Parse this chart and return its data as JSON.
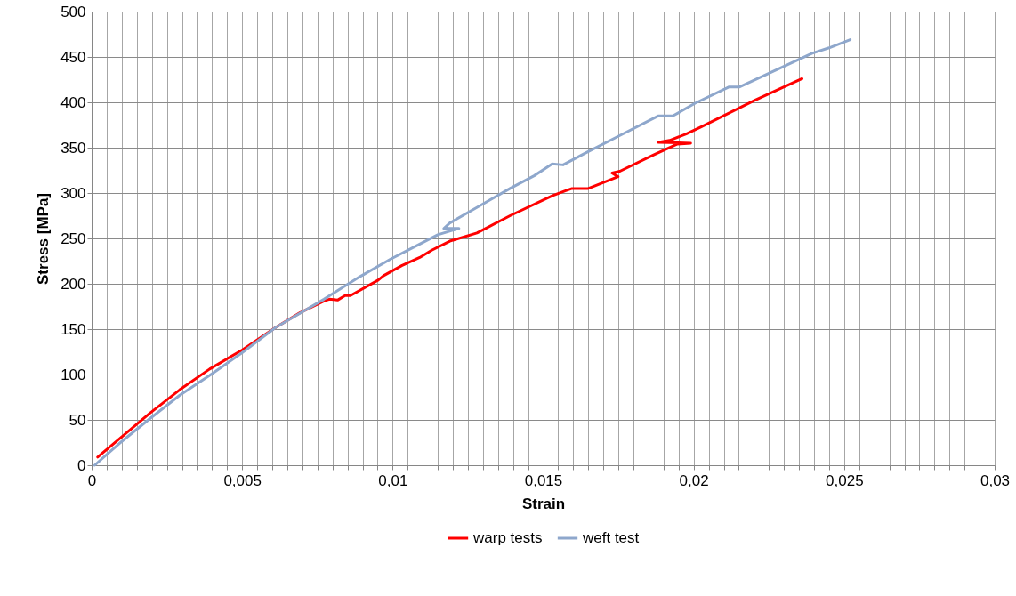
{
  "chart_data": {
    "type": "line",
    "xlabel": "Strain",
    "ylabel": "Stress [MPa]",
    "xlim": [
      0,
      0.03
    ],
    "ylim": [
      0,
      500
    ],
    "xticks": [
      0,
      {
        "value": 0.0005,
        "label": null
      },
      {
        "value": 0.001,
        "label": null
      },
      {
        "value": 0.0015,
        "label": null
      },
      {
        "value": 0.002,
        "label": null
      },
      {
        "value": 0.0025,
        "label": null
      },
      {
        "value": 0.003,
        "label": null
      },
      {
        "value": 0.0035,
        "label": null
      },
      {
        "value": 0.004,
        "label": null
      },
      {
        "value": 0.0045,
        "label": null
      },
      {
        "value": 0.005,
        "label": "0,005"
      },
      {
        "value": 0.0055,
        "label": null
      },
      {
        "value": 0.006,
        "label": null
      },
      {
        "value": 0.0065,
        "label": null
      },
      {
        "value": 0.007,
        "label": null
      },
      {
        "value": 0.0075,
        "label": null
      },
      {
        "value": 0.008,
        "label": null
      },
      {
        "value": 0.0085,
        "label": null
      },
      {
        "value": 0.009,
        "label": null
      },
      {
        "value": 0.0095,
        "label": null
      },
      {
        "value": 0.01,
        "label": "0,01"
      },
      {
        "value": 0.0105,
        "label": null
      },
      {
        "value": 0.011,
        "label": null
      },
      {
        "value": 0.0115,
        "label": null
      },
      {
        "value": 0.012,
        "label": null
      },
      {
        "value": 0.0125,
        "label": null
      },
      {
        "value": 0.013,
        "label": null
      },
      {
        "value": 0.0135,
        "label": null
      },
      {
        "value": 0.014,
        "label": null
      },
      {
        "value": 0.0145,
        "label": null
      },
      {
        "value": 0.015,
        "label": "0,015"
      },
      {
        "value": 0.0155,
        "label": null
      },
      {
        "value": 0.016,
        "label": null
      },
      {
        "value": 0.0165,
        "label": null
      },
      {
        "value": 0.017,
        "label": null
      },
      {
        "value": 0.0175,
        "label": null
      },
      {
        "value": 0.018,
        "label": null
      },
      {
        "value": 0.0185,
        "label": null
      },
      {
        "value": 0.019,
        "label": null
      },
      {
        "value": 0.0195,
        "label": null
      },
      {
        "value": 0.02,
        "label": "0,02"
      },
      {
        "value": 0.0205,
        "label": null
      },
      {
        "value": 0.021,
        "label": null
      },
      {
        "value": 0.0215,
        "label": null
      },
      {
        "value": 0.022,
        "label": null
      },
      {
        "value": 0.0225,
        "label": null
      },
      {
        "value": 0.023,
        "label": null
      },
      {
        "value": 0.0235,
        "label": null
      },
      {
        "value": 0.024,
        "label": null
      },
      {
        "value": 0.0245,
        "label": null
      },
      {
        "value": 0.025,
        "label": "0,025"
      },
      {
        "value": 0.0255,
        "label": null
      },
      {
        "value": 0.026,
        "label": null
      },
      {
        "value": 0.0265,
        "label": null
      },
      {
        "value": 0.027,
        "label": null
      },
      {
        "value": 0.0275,
        "label": null
      },
      {
        "value": 0.028,
        "label": null
      },
      {
        "value": 0.0285,
        "label": null
      },
      {
        "value": 0.029,
        "label": null
      },
      {
        "value": 0.0295,
        "label": null
      },
      {
        "value": 0.03,
        "label": "0,03"
      }
    ],
    "yticks": [
      0,
      50,
      100,
      150,
      200,
      250,
      300,
      350,
      400,
      450,
      500
    ],
    "grid": true,
    "legend": "bottom",
    "line_style": "solid",
    "marker": "none",
    "series": [
      {
        "name": "warp tests",
        "color": "#ff0000",
        "x": [
          0.0002,
          0.00092,
          0.00192,
          0.00292,
          0.00392,
          0.005,
          0.00612,
          0.00692,
          0.00772,
          0.0079,
          0.00817,
          0.00842,
          0.0086,
          0.00952,
          0.0097,
          0.0103,
          0.0109,
          0.0113,
          0.0119,
          0.0128,
          0.0139,
          0.0153,
          0.01571,
          0.01596,
          0.0165,
          0.01749,
          0.01729,
          0.01755,
          0.01867,
          0.01946,
          0.0199,
          0.01882,
          0.0192,
          0.01975,
          0.02025,
          0.02202,
          0.0236
        ],
        "values": [
          9,
          29,
          57,
          83,
          106,
          127,
          152,
          168,
          181,
          183,
          182,
          187,
          187,
          204,
          209,
          220,
          229,
          237,
          247,
          256,
          275,
          297,
          302,
          305,
          305,
          318,
          322,
          324,
          342,
          354,
          355,
          356,
          358,
          365,
          373,
          402,
          426
        ]
      },
      {
        "name": "weft test",
        "color": "#8ea7cc",
        "x": [
          0.0001,
          0.00092,
          0.00192,
          0.00292,
          0.00392,
          0.005,
          0.00612,
          0.00772,
          0.00892,
          0.00992,
          0.0108,
          0.0115,
          0.0122,
          0.0117,
          0.0119,
          0.0129,
          0.0139,
          0.0147,
          0.0153,
          0.01566,
          0.0164,
          0.01758,
          0.01882,
          0.01931,
          0.02005,
          0.02118,
          0.02153,
          0.02394,
          0.0245,
          0.0252
        ],
        "values": [
          0,
          24,
          51,
          77,
          99,
          124,
          152,
          183,
          208,
          227,
          242,
          254,
          261,
          261,
          267,
          286,
          305,
          319,
          332,
          331,
          344,
          364,
          385,
          385,
          399,
          417,
          417,
          454,
          460,
          469
        ]
      }
    ]
  }
}
